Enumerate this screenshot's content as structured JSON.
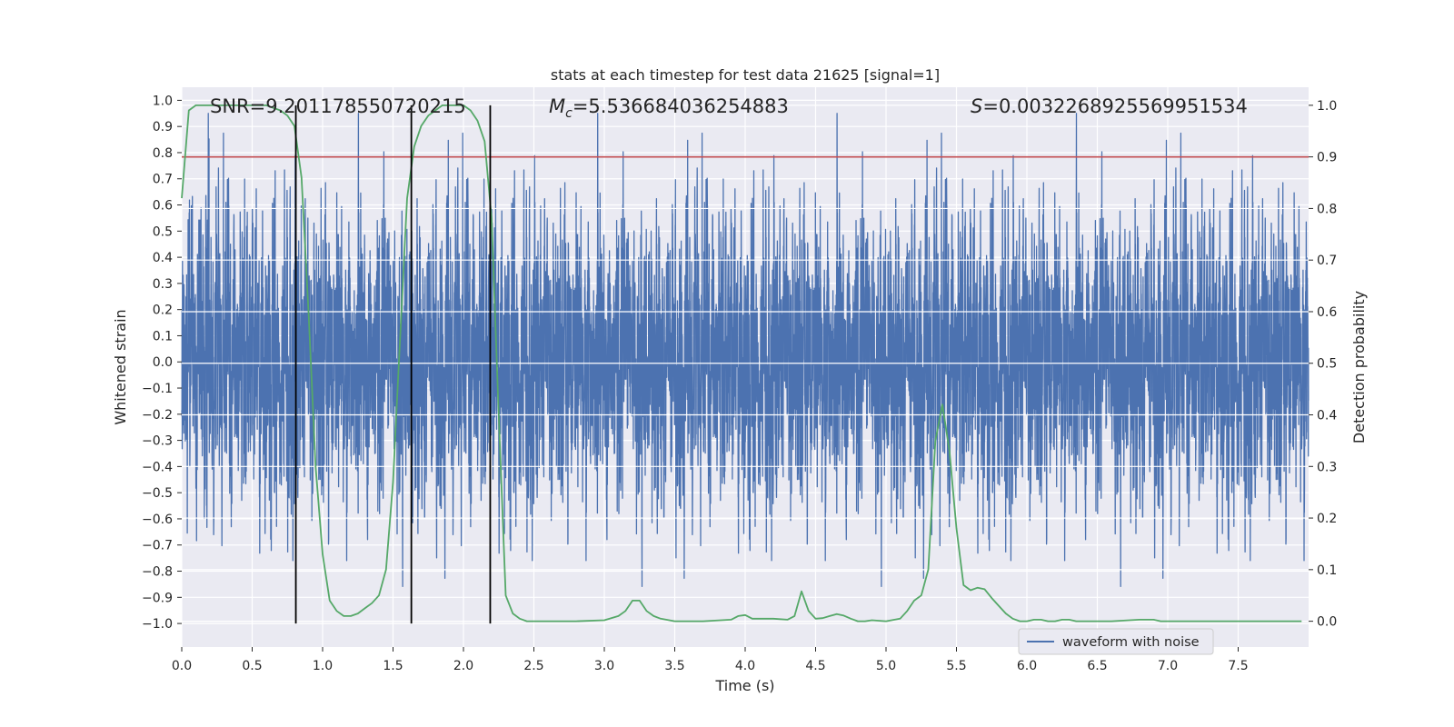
{
  "chart_data": {
    "type": "line",
    "title": "stats at each timestep for test data 21625 [signal=1]",
    "xlabel": "Time (s)",
    "ylabel": "Whitened strain",
    "y2label": "Detection probability",
    "xlim": [
      0.0,
      8.0
    ],
    "ylim": [
      -1.09,
      1.05
    ],
    "y2lim": [
      -0.05,
      1.035
    ],
    "xticks": [
      0.0,
      0.5,
      1.0,
      1.5,
      2.0,
      2.5,
      3.0,
      3.5,
      4.0,
      4.5,
      5.0,
      5.5,
      6.0,
      6.5,
      7.0,
      7.5
    ],
    "xtick_labels": [
      "0.0",
      "0.5",
      "1.0",
      "1.5",
      "2.0",
      "2.5",
      "3.0",
      "3.5",
      "4.0",
      "4.5",
      "5.0",
      "5.5",
      "6.0",
      "6.5",
      "7.0",
      "7.5"
    ],
    "yticks": [
      1.0,
      0.9,
      0.8,
      0.7,
      0.6,
      0.5,
      0.4,
      0.3,
      0.2,
      0.1,
      0.0,
      -0.1,
      -0.2,
      -0.3,
      -0.4,
      -0.5,
      -0.6,
      -0.7,
      -0.8,
      -0.9,
      -1.0
    ],
    "ytick_labels": [
      "1.0",
      "0.9",
      "0.8",
      "0.7",
      "0.6",
      "0.5",
      "0.4",
      "0.3",
      "0.2",
      "0.1",
      "0.0",
      "−0.1",
      "−0.2",
      "−0.3",
      "−0.4",
      "−0.5",
      "−0.6",
      "−0.7",
      "−0.8",
      "−0.9",
      "−1.0"
    ],
    "y2ticks": [
      1.0,
      0.9,
      0.8,
      0.7,
      0.6,
      0.5,
      0.4,
      0.3,
      0.2,
      0.1,
      0.0
    ],
    "y2tick_labels": [
      "1.0",
      "0.9",
      "0.8",
      "0.7",
      "0.6",
      "0.5",
      "0.4",
      "0.3",
      "0.2",
      "0.1",
      "0.0"
    ],
    "grid": true,
    "annotations": {
      "snr": "SNR=9.201178550720215",
      "mc_prefix": "M",
      "mc_sub": "c",
      "mc_value": "=5.536684036254883",
      "s_prefix": "S",
      "s_value": "=0.0032268925569951534"
    },
    "legend": {
      "position": "lower-center-right",
      "entries": [
        "waveform with noise"
      ]
    },
    "threshold_line": {
      "y2": 0.9,
      "color": "#c44e52"
    },
    "vertical_lines": {
      "x": [
        0.81,
        1.63,
        2.19
      ],
      "color": "#000000"
    },
    "waveform": {
      "name": "waveform with noise",
      "color": "#4c72b0",
      "sample_rate": 2048,
      "duration": 8.0,
      "envelope": "noise with |strain| mostly below 0.6, spikes up to about 0.95 and down to about -1.0"
    },
    "probability": {
      "color": "#55a868",
      "x": [
        0.0,
        0.05,
        0.1,
        0.2,
        0.3,
        0.4,
        0.5,
        0.6,
        0.7,
        0.75,
        0.8,
        0.85,
        0.9,
        0.95,
        1.0,
        1.05,
        1.1,
        1.15,
        1.2,
        1.25,
        1.3,
        1.35,
        1.4,
        1.45,
        1.5,
        1.55,
        1.6,
        1.65,
        1.7,
        1.75,
        1.8,
        1.85,
        1.9,
        1.95,
        2.0,
        2.05,
        2.1,
        2.15,
        2.2,
        2.25,
        2.3,
        2.35,
        2.4,
        2.45,
        2.5,
        2.6,
        2.8,
        3.0,
        3.1,
        3.15,
        3.2,
        3.25,
        3.3,
        3.35,
        3.4,
        3.5,
        3.7,
        3.9,
        3.95,
        4.0,
        4.05,
        4.1,
        4.2,
        4.3,
        4.35,
        4.4,
        4.45,
        4.5,
        4.55,
        4.6,
        4.65,
        4.7,
        4.75,
        4.8,
        4.85,
        4.9,
        5.0,
        5.1,
        5.15,
        5.2,
        5.25,
        5.3,
        5.35,
        5.4,
        5.45,
        5.5,
        5.55,
        5.6,
        5.65,
        5.7,
        5.75,
        5.8,
        5.85,
        5.9,
        5.95,
        6.0,
        6.05,
        6.1,
        6.15,
        6.2,
        6.25,
        6.3,
        6.35,
        6.4,
        6.5,
        6.6,
        6.8,
        6.9,
        6.95,
        7.0,
        7.1,
        7.2,
        7.4,
        7.6,
        7.8,
        7.95
      ],
      "y": [
        0.82,
        0.99,
        1.0,
        1.0,
        1.0,
        1.0,
        1.0,
        1.0,
        0.99,
        0.98,
        0.96,
        0.86,
        0.6,
        0.3,
        0.13,
        0.04,
        0.02,
        0.01,
        0.01,
        0.015,
        0.025,
        0.035,
        0.05,
        0.1,
        0.27,
        0.55,
        0.82,
        0.92,
        0.96,
        0.98,
        0.99,
        1.0,
        1.0,
        1.0,
        1.0,
        0.99,
        0.97,
        0.93,
        0.78,
        0.4,
        0.05,
        0.015,
        0.005,
        0.0,
        0.0,
        0.0,
        0.0,
        0.002,
        0.01,
        0.02,
        0.04,
        0.04,
        0.02,
        0.01,
        0.005,
        0.0,
        0.0,
        0.003,
        0.01,
        0.012,
        0.005,
        0.005,
        0.005,
        0.003,
        0.01,
        0.058,
        0.02,
        0.005,
        0.006,
        0.01,
        0.014,
        0.011,
        0.005,
        0.0,
        0.0,
        0.002,
        0.0,
        0.005,
        0.02,
        0.04,
        0.05,
        0.1,
        0.35,
        0.42,
        0.33,
        0.18,
        0.07,
        0.06,
        0.065,
        0.062,
        0.045,
        0.03,
        0.015,
        0.005,
        0.0,
        0.0,
        0.003,
        0.003,
        0.0,
        0.0,
        0.003,
        0.003,
        0.0,
        0.0,
        0.0,
        0.0,
        0.003,
        0.003,
        0.0,
        0.0,
        0.0,
        0.0,
        0.0,
        0.0,
        0.0,
        0.0
      ]
    }
  }
}
